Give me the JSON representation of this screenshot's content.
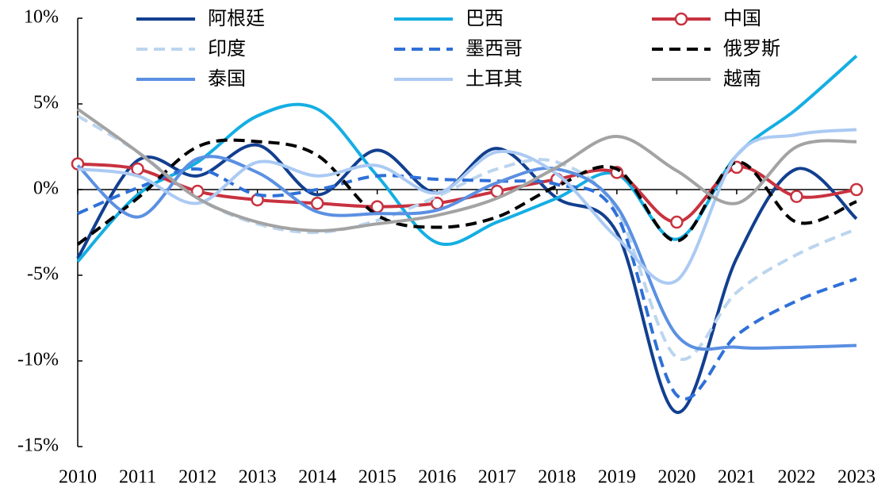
{
  "chart_data": {
    "type": "line",
    "categories": [
      "2010",
      "2011",
      "2012",
      "2013",
      "2014",
      "2015",
      "2016",
      "2017",
      "2018",
      "2019",
      "2020",
      "2021",
      "2022",
      "2023"
    ],
    "ylim": [
      -15,
      10
    ],
    "yticks": [
      {
        "value": -15,
        "label": "-15%"
      },
      {
        "value": -10,
        "label": "-10%"
      },
      {
        "value": -5,
        "label": "-5%"
      },
      {
        "value": 0,
        "label": "0%"
      },
      {
        "value": 5,
        "label": "5%"
      },
      {
        "value": 10,
        "label": "10%"
      }
    ],
    "legend": "top",
    "series": [
      {
        "name": "阿根廷",
        "color": "#123f8f",
        "dash": false,
        "values": [
          -4.0,
          1.7,
          0.8,
          2.6,
          -0.3,
          2.3,
          -0.2,
          2.4,
          -0.5,
          -2.5,
          -13.0,
          -4.0,
          1.2,
          -1.7
        ]
      },
      {
        "name": "巴西",
        "color": "#14aee3",
        "dash": false,
        "values": [
          -4.2,
          -0.3,
          1.6,
          4.3,
          4.7,
          0.8,
          -3.1,
          -1.9,
          -0.5,
          0.9,
          -2.9,
          2.0,
          4.7,
          7.8
        ]
      },
      {
        "name": "中国",
        "color": "#c8323f",
        "dash": false,
        "marker": "circle",
        "values": [
          1.5,
          1.2,
          -0.1,
          -0.6,
          -0.8,
          -1.0,
          -0.8,
          -0.1,
          0.6,
          1.0,
          -1.9,
          1.3,
          -0.4,
          0.0
        ]
      },
      {
        "name": "印度",
        "color": "#bcd5ee",
        "dash": true,
        "values": [
          4.3,
          2.2,
          -0.5,
          -2.0,
          -2.5,
          -1.8,
          -0.4,
          1.2,
          1.6,
          -1.2,
          -9.8,
          -6.0,
          -3.8,
          -2.3
        ]
      },
      {
        "name": "墨西哥",
        "color": "#2f70d8",
        "dash": true,
        "values": [
          -1.4,
          0.1,
          1.2,
          -0.3,
          0.0,
          0.8,
          0.6,
          0.5,
          0.3,
          -1.5,
          -12.0,
          -8.5,
          -6.5,
          -5.2
        ]
      },
      {
        "name": "俄罗斯",
        "color": "#000000",
        "dash": true,
        "values": [
          -3.2,
          -0.5,
          2.5,
          2.8,
          2.0,
          -1.5,
          -2.2,
          -1.6,
          0.2,
          1.2,
          -3.0,
          1.6,
          -1.9,
          -0.7
        ]
      },
      {
        "name": "泰国",
        "color": "#5b90e2",
        "dash": false,
        "values": [
          1.4,
          -1.6,
          1.8,
          1.0,
          -1.3,
          -1.4,
          -1.2,
          0.4,
          1.2,
          -1.0,
          -8.5,
          -9.2,
          -9.2,
          -9.1
        ]
      },
      {
        "name": "土耳其",
        "color": "#abcaf3",
        "dash": false,
        "values": [
          1.2,
          0.8,
          -0.8,
          1.6,
          0.8,
          1.4,
          -0.2,
          2.2,
          0.9,
          -2.8,
          -5.3,
          2.0,
          3.2,
          3.5
        ]
      },
      {
        "name": "越南",
        "color": "#a3a3a3",
        "dash": false,
        "values": [
          4.7,
          2.2,
          -0.5,
          -1.9,
          -2.4,
          -2.0,
          -1.5,
          -0.5,
          1.3,
          3.1,
          1.1,
          -0.8,
          2.5,
          2.8
        ]
      }
    ]
  }
}
